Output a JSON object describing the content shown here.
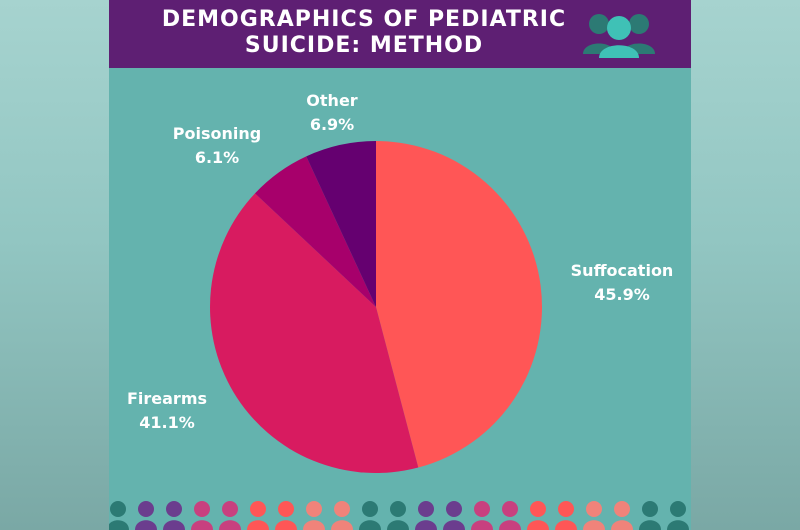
{
  "header": {
    "title": "DEMOGRAPHICS OF PEDIATRIC\nSUICIDE: METHOD"
  },
  "colors": {
    "header_bg": "#5e1f73",
    "card_bg": "#64b3ae",
    "suffocation": "#ff5656",
    "firearms": "#d81b60",
    "poisoning": "#a7006b",
    "other": "#650070"
  },
  "chart_data": {
    "type": "pie",
    "title": "DEMOGRAPHICS OF PEDIATRIC SUICIDE: METHOD",
    "slices": [
      {
        "label": "Suffocation",
        "value": 45.9,
        "value_label": "45.9%",
        "color": "#ff5656"
      },
      {
        "label": "Firearms",
        "value": 41.1,
        "value_label": "41.1%",
        "color": "#d81b60"
      },
      {
        "label": "Poisoning",
        "value": 6.1,
        "value_label": "6.1%",
        "color": "#a7006b"
      },
      {
        "label": "Other",
        "value": 6.9,
        "value_label": "6.9%",
        "color": "#650070"
      }
    ]
  },
  "decor": {
    "figure_colors": [
      "#2c7a74",
      "#6b3d8e",
      "#6b3d8e",
      "#c8407f",
      "#c8407f",
      "#ff5656",
      "#ff5656",
      "#f0837a",
      "#f0837a",
      "#2c7a74",
      "#2c7a74",
      "#6b3d8e",
      "#6b3d8e",
      "#c8407f",
      "#c8407f",
      "#ff5656",
      "#ff5656",
      "#f0837a",
      "#f0837a",
      "#2c7a74",
      "#2c7a74"
    ],
    "icon": "people-group-icon"
  }
}
